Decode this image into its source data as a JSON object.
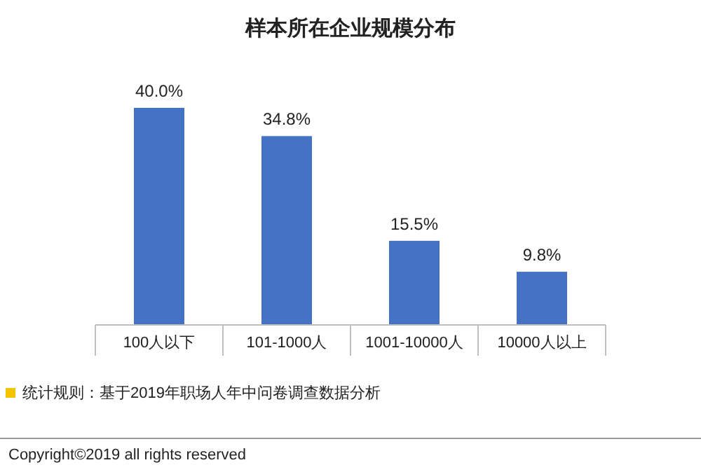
{
  "chart_data": {
    "type": "bar",
    "title": "样本所在企业规模分布",
    "categories": [
      "100人以下",
      "101-1000人",
      "1001-10000人",
      "10000人以上"
    ],
    "values": [
      40.0,
      34.8,
      15.5,
      9.8
    ],
    "value_labels": [
      "40.0%",
      "34.8%",
      "15.5%",
      "9.8%"
    ],
    "color": "#4472c4",
    "annotations": [
      "统计规则：基于2019年职场人年中问卷调查数据分析",
      "Copyright©2019 all rights reserved"
    ]
  }
}
